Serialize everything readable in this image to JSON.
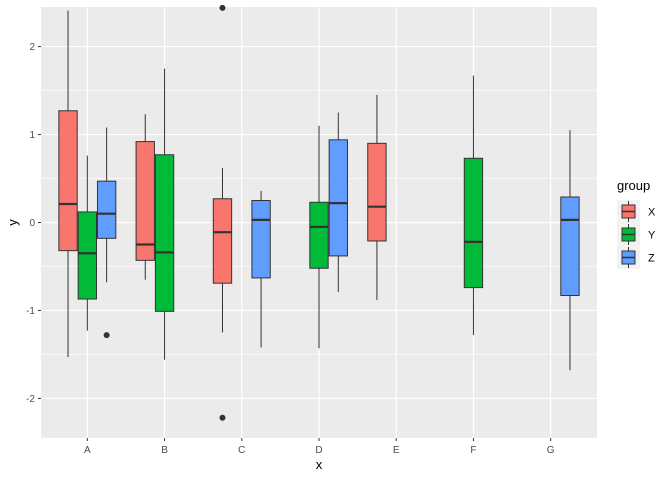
{
  "chart_data": {
    "type": "box",
    "xlabel": "x",
    "ylabel": "y",
    "categories": [
      "A",
      "B",
      "C",
      "D",
      "E",
      "F",
      "G"
    ],
    "ylim": [
      -2.45,
      2.45
    ],
    "yticks": [
      -2,
      -1,
      0,
      1,
      2
    ],
    "grid": true,
    "legend": {
      "title": "group",
      "position": "right",
      "entries": [
        {
          "name": "X",
          "color": "#F8766D"
        },
        {
          "name": "Y",
          "color": "#00BA38"
        },
        {
          "name": "Z",
          "color": "#619CFF"
        }
      ]
    },
    "boxes": [
      {
        "category": "A",
        "group": "X",
        "lower_whisker": -1.53,
        "q1": -0.32,
        "median": 0.21,
        "q3": 1.27,
        "upper_whisker": 2.41,
        "outliers": []
      },
      {
        "category": "A",
        "group": "Y",
        "lower_whisker": -1.23,
        "q1": -0.87,
        "median": -0.35,
        "q3": 0.12,
        "upper_whisker": 0.76,
        "outliers": []
      },
      {
        "category": "A",
        "group": "Z",
        "lower_whisker": -0.68,
        "q1": -0.18,
        "median": 0.1,
        "q3": 0.47,
        "upper_whisker": 1.08,
        "outliers": [
          -1.28
        ]
      },
      {
        "category": "B",
        "group": "X",
        "lower_whisker": -0.65,
        "q1": -0.43,
        "median": -0.25,
        "q3": 0.92,
        "upper_whisker": 1.23,
        "outliers": []
      },
      {
        "category": "B",
        "group": "Y",
        "lower_whisker": -1.56,
        "q1": -1.01,
        "median": -0.34,
        "q3": 0.77,
        "upper_whisker": 1.75,
        "outliers": []
      },
      {
        "category": "C",
        "group": "X",
        "lower_whisker": -1.25,
        "q1": -0.69,
        "median": -0.11,
        "q3": 0.27,
        "upper_whisker": 0.62,
        "outliers": [
          2.44,
          -2.22
        ]
      },
      {
        "category": "C",
        "group": "Z",
        "lower_whisker": -1.42,
        "q1": -0.63,
        "median": 0.03,
        "q3": 0.25,
        "upper_whisker": 0.36,
        "outliers": []
      },
      {
        "category": "D",
        "group": "Y",
        "lower_whisker": -1.43,
        "q1": -0.52,
        "median": -0.05,
        "q3": 0.23,
        "upper_whisker": 1.1,
        "outliers": []
      },
      {
        "category": "D",
        "group": "Z",
        "lower_whisker": -0.79,
        "q1": -0.38,
        "median": 0.22,
        "q3": 0.94,
        "upper_whisker": 1.25,
        "outliers": []
      },
      {
        "category": "E",
        "group": "X",
        "lower_whisker": -0.88,
        "q1": -0.21,
        "median": 0.18,
        "q3": 0.9,
        "upper_whisker": 1.45,
        "outliers": []
      },
      {
        "category": "F",
        "group": "Y",
        "lower_whisker": -1.28,
        "q1": -0.74,
        "median": -0.22,
        "q3": 0.73,
        "upper_whisker": 1.67,
        "outliers": []
      },
      {
        "category": "G",
        "group": "Z",
        "lower_whisker": -1.68,
        "q1": -0.83,
        "median": 0.03,
        "q3": 0.29,
        "upper_whisker": 1.05,
        "outliers": []
      }
    ]
  }
}
